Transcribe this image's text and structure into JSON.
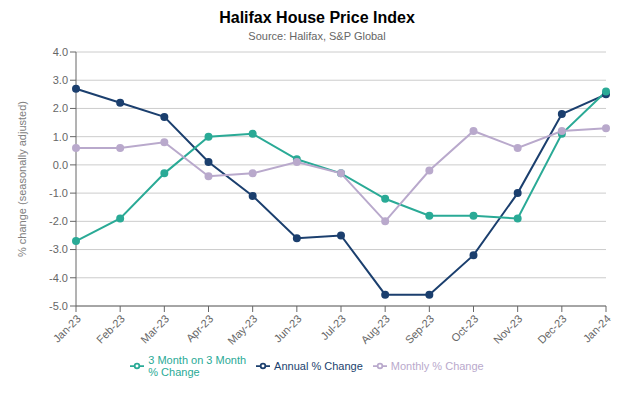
{
  "chart_data": {
    "type": "line",
    "title": "Halifax House Price Index",
    "subtitle": "Source: Halifax, S&P Global",
    "ylabel": "% change (seasonally adjusted)",
    "categories": [
      "Jan-23",
      "Feb-23",
      "Mar-23",
      "Apr-23",
      "May-23",
      "Jun-23",
      "Jul-23",
      "Aug-23",
      "Sep-23",
      "Oct-23",
      "Nov-23",
      "Dec-23",
      "Jan-24"
    ],
    "series": [
      {
        "name": "Annual % Change",
        "color": "#1b3f6e",
        "marker": "circle",
        "values": [
          2.7,
          2.2,
          1.7,
          0.1,
          -1.1,
          -2.6,
          -2.5,
          -4.6,
          -4.6,
          -3.2,
          -1.0,
          1.8,
          2.5
        ]
      },
      {
        "name": "3 Month on 3 Month\n% Change",
        "color": "#2aaa96",
        "marker": "circle",
        "values": [
          -2.7,
          -1.9,
          -0.3,
          1.0,
          1.1,
          0.2,
          -0.3,
          -1.2,
          -1.8,
          -1.8,
          -1.9,
          1.1,
          2.6
        ]
      },
      {
        "name": "Monthly % Change",
        "color": "#b9a9cc",
        "marker": "circle",
        "values": [
          0.6,
          0.6,
          0.8,
          -0.4,
          -0.3,
          0.1,
          -0.3,
          -2.0,
          -0.2,
          1.2,
          0.6,
          1.2,
          1.3
        ]
      }
    ],
    "ylim": [
      -5.0,
      4.0
    ],
    "yticks": [
      {
        "value": -5,
        "label": "-5.0"
      },
      {
        "value": -4,
        "label": "-4.0"
      },
      {
        "value": -3,
        "label": "-3.0"
      },
      {
        "value": -2,
        "label": "-2.0"
      },
      {
        "value": -1,
        "label": "-1.0"
      },
      {
        "value": 0,
        "label": "0.0"
      },
      {
        "value": 1,
        "label": "1.0"
      },
      {
        "value": 2,
        "label": "2.0"
      },
      {
        "value": 3,
        "label": "3.0"
      },
      {
        "value": 4,
        "label": "4.0"
      }
    ],
    "grid": true,
    "legend": "bottom"
  }
}
